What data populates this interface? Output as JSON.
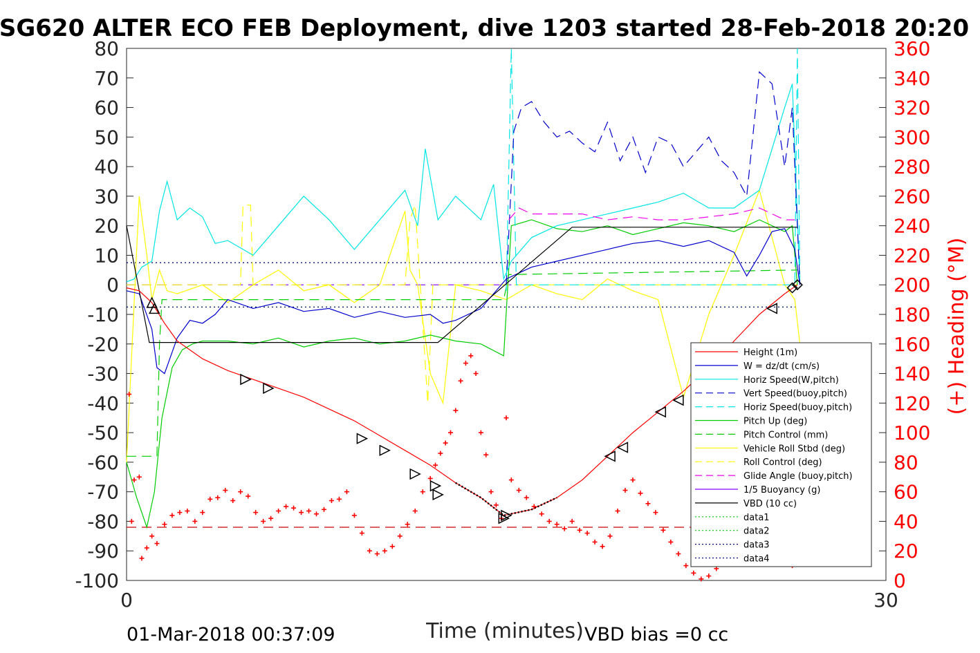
{
  "chart_data": {
    "type": "line",
    "title": "SG620 ALTER ECO FEB Deployment, dive 1203 started 28-Feb-2018 20:20",
    "xlabel": "Time (minutes)",
    "ylabel_right": "(+) Heading (°M)",
    "xlim": [
      0,
      30
    ],
    "ylim": [
      -100,
      80
    ],
    "ylim_right": [
      0,
      360
    ],
    "x_ticks": [
      "0",
      "30"
    ],
    "y_ticks": [
      "80",
      "70",
      "60",
      "50",
      "40",
      "30",
      "20",
      "10",
      "0",
      "-10",
      "-20",
      "-30",
      "-40",
      "-50",
      "-60",
      "-70",
      "-80",
      "-90",
      "-100"
    ],
    "y_right_ticks": [
      "360",
      "340",
      "320",
      "300",
      "280",
      "260",
      "240",
      "220",
      "200",
      "180",
      "160",
      "140",
      "120",
      "100",
      "80",
      "60",
      "40",
      "20",
      "0"
    ],
    "footer_left": "01-Mar-2018 00:37:09",
    "footer_right": "VBD bias =0 cc",
    "legend_position": "bottom-right",
    "colors": {
      "height": "#ff0000",
      "w": "#0000cc",
      "horiz_speed": "#00e5e5",
      "pitch": "#00cc00",
      "roll": "#ffff00",
      "glide": "#ee00ee",
      "buoyancy": "#8000ff",
      "vbd": "#000000",
      "heading": "#ff0000"
    },
    "legend": [
      {
        "label": "Height (1m)",
        "color": "#ff0000",
        "dash": "solid"
      },
      {
        "label": "W = dz/dt (cm/s)",
        "color": "#0000cc",
        "dash": "solid"
      },
      {
        "label": "Horiz Speed(W,pitch)",
        "color": "#00e5e5",
        "dash": "solid"
      },
      {
        "label": "Vert Speed(buoy,pitch)",
        "color": "#0000cc",
        "dash": "dashed"
      },
      {
        "label": "Horiz Speed(buoy,pitch)",
        "color": "#00e5e5",
        "dash": "dashed"
      },
      {
        "label": "Pitch Up (deg)",
        "color": "#00cc00",
        "dash": "solid"
      },
      {
        "label": "Pitch Control (mm)",
        "color": "#00cc00",
        "dash": "dashed"
      },
      {
        "label": "Vehicle Roll Stbd (deg)",
        "color": "#ffff00",
        "dash": "solid"
      },
      {
        "label": "Roll Control (deg)",
        "color": "#ffff00",
        "dash": "dashed"
      },
      {
        "label": "Glide Angle (buoy,pitch)",
        "color": "#ee00ee",
        "dash": "dashed"
      },
      {
        "label": "1/5 Buoyancy (g)",
        "color": "#8000ff",
        "dash": "solid"
      },
      {
        "label": "VBD (10 cc)",
        "color": "#000000",
        "dash": "solid"
      },
      {
        "label": "data1",
        "color": "#00cc00",
        "dash": "dotted"
      },
      {
        "label": "data2",
        "color": "#00cc00",
        "dash": "dotted"
      },
      {
        "label": "data3",
        "color": "#000080",
        "dash": "dotted"
      },
      {
        "label": "data4",
        "color": "#000080",
        "dash": "dotted"
      }
    ],
    "series": [
      {
        "key": "height",
        "x": [
          0,
          0.5,
          1,
          1.5,
          2,
          3,
          4,
          5,
          6,
          7,
          8,
          9,
          10,
          11,
          12,
          13,
          14,
          14.9,
          16,
          17,
          18,
          19,
          20,
          21,
          22,
          23,
          24,
          25,
          26,
          26.5
        ],
        "y": [
          -1,
          -2,
          -6,
          -13,
          -19,
          -25,
          -29,
          -32,
          -35,
          -38,
          -42,
          -46,
          -51,
          -56,
          -61,
          -67,
          -72,
          -78,
          -76,
          -72,
          -66,
          -58,
          -50,
          -43,
          -36,
          -28,
          -19,
          -10,
          -3,
          0
        ]
      },
      {
        "key": "w",
        "x": [
          0,
          0.5,
          1,
          1.2,
          1.5,
          2,
          2.5,
          3,
          3.5,
          4,
          5,
          6,
          7,
          8,
          9,
          10,
          11,
          12,
          12.5,
          13,
          14,
          15,
          16,
          17,
          18,
          19,
          20,
          21,
          22,
          23,
          24,
          24.5,
          25,
          25.5,
          26,
          26.4,
          26.6
        ],
        "y": [
          -2,
          -3,
          -15,
          -28,
          -30,
          -18,
          -12,
          -13,
          -10,
          -5,
          -8,
          -6,
          -9,
          -8,
          -11,
          -9,
          -11,
          -10,
          -13,
          -12,
          -8,
          2,
          6,
          8,
          10,
          12,
          14,
          15,
          13,
          15,
          11,
          3,
          10,
          18,
          19,
          12,
          0
        ]
      },
      {
        "key": "horiz_speed",
        "x": [
          0,
          0.3,
          0.6,
          1,
          1.3,
          1.6,
          2,
          2.5,
          3,
          3.5,
          4,
          5,
          6,
          7,
          8,
          9,
          10,
          11,
          11.5,
          11.8,
          12.3,
          13,
          14,
          14.5,
          14.9,
          15.2,
          16,
          17,
          18,
          19,
          20,
          21,
          22,
          23,
          24,
          25,
          26,
          26.3,
          26.6
        ],
        "y": [
          1,
          2,
          6,
          8,
          25,
          35,
          22,
          26,
          23,
          14,
          15,
          10,
          20,
          30,
          22,
          12,
          22,
          32,
          20,
          46,
          22,
          30,
          22,
          34,
          2,
          8,
          16,
          20,
          22,
          24,
          26,
          28,
          31,
          26,
          26,
          32,
          60,
          68,
          0
        ]
      },
      {
        "key": "vert_speed_buoy",
        "x": [
          15.0,
          15.3,
          15.6,
          16,
          16.5,
          17,
          17.5,
          18,
          18.5,
          19,
          19.5,
          20,
          20.5,
          21,
          21.5,
          22,
          22.5,
          23,
          23.5,
          24,
          24.5,
          25,
          25.5,
          26,
          26.3,
          26.6
        ],
        "y": [
          0,
          52,
          60,
          62,
          55,
          50,
          52,
          48,
          45,
          55,
          42,
          50,
          38,
          50,
          48,
          40,
          45,
          50,
          42,
          38,
          30,
          72,
          68,
          40,
          60,
          0
        ]
      },
      {
        "key": "horiz_speed_buoy",
        "x": [
          15.0,
          15.2,
          15.4,
          26.4,
          26.5,
          26.6
        ],
        "y": [
          -2,
          80,
          0,
          0,
          80,
          0
        ]
      },
      {
        "key": "pitch",
        "x": [
          0,
          0.4,
          0.8,
          1.1,
          1.4,
          1.8,
          2.2,
          2.6,
          3,
          4,
          5,
          6,
          7,
          8,
          9,
          10,
          11,
          12,
          13,
          14,
          14.9,
          15.2,
          16,
          17,
          18,
          19,
          20,
          21,
          22,
          23,
          24,
          25,
          26,
          26.3,
          26.5
        ],
        "y": [
          -60,
          -72,
          -82,
          -70,
          -45,
          -28,
          -22,
          -20,
          -19,
          -19,
          -20,
          -18,
          -21,
          -19,
          -18,
          -20,
          -19,
          -17,
          -19,
          -20,
          -24,
          20,
          22,
          19,
          18,
          20,
          17,
          19,
          21,
          20,
          18,
          22,
          18,
          20,
          0
        ]
      },
      {
        "key": "pitch_control",
        "x": [
          0,
          1.2,
          1.3,
          1.4,
          14.9,
          15.1,
          26.5
        ],
        "y": [
          -58,
          -58,
          -20,
          -5,
          -5,
          3.5,
          5
        ]
      },
      {
        "key": "roll",
        "x": [
          0,
          0.5,
          0.8,
          1,
          1.3,
          1.6,
          2,
          3,
          4,
          5,
          6,
          7,
          8,
          9,
          10,
          11,
          11.2,
          11.5,
          12,
          12.5,
          13,
          14,
          15,
          16,
          17,
          18,
          19,
          20,
          21,
          22,
          23,
          24,
          25,
          26,
          26.4,
          26.6
        ],
        "y": [
          -60,
          30,
          10,
          -5,
          5,
          -2,
          -3,
          0,
          -6,
          0,
          5,
          -2,
          0,
          -6,
          0,
          25,
          5,
          0,
          -30,
          -40,
          0,
          -2,
          -5,
          0,
          -3,
          -5,
          2,
          -2,
          -5,
          -38,
          -10,
          10,
          32,
          0,
          -5,
          -20
        ]
      },
      {
        "key": "roll_control",
        "x": [
          0,
          4.5,
          4.6,
          4.9,
          5.0,
          11,
          11.2,
          11.4,
          11.6,
          11.9,
          12.1,
          26.5
        ],
        "y": [
          0,
          0,
          27,
          27,
          0,
          0,
          22,
          27,
          0,
          -40,
          0,
          0
        ]
      },
      {
        "key": "glide",
        "x": [
          15.1,
          15.5,
          16,
          17,
          18,
          19,
          20,
          21,
          22,
          23,
          24,
          25,
          26,
          26.4
        ],
        "y": [
          22,
          26,
          24,
          24,
          24,
          22,
          23,
          22,
          22,
          23,
          24,
          26,
          22,
          22
        ]
      },
      {
        "key": "buoyancy",
        "x": [
          0,
          15.0,
          15.2
        ],
        "y": [
          0,
          0,
          0
        ]
      },
      {
        "key": "vbd",
        "x": [
          0,
          0.9,
          12.3,
          17.6,
          26.5
        ],
        "y": [
          20,
          -19.5,
          -19.5,
          19.5,
          19.5
        ]
      },
      {
        "key": "data1",
        "x": [
          0,
          26.5
        ],
        "y": [
          7.5,
          7.5
        ]
      },
      {
        "key": "data2",
        "x": [
          0,
          26.5
        ],
        "y": [
          -7.5,
          -7.5
        ]
      },
      {
        "key": "data3",
        "x": [
          0,
          26.5
        ],
        "y": [
          7.5,
          7.5
        ]
      },
      {
        "key": "data4",
        "x": [
          0,
          26.5
        ],
        "y": [
          -7.5,
          -7.5
        ]
      },
      {
        "key": "reference_line",
        "x": [
          0,
          26.5
        ],
        "y": [
          -82,
          -82
        ]
      }
    ],
    "heading": {
      "axis": "right",
      "x": [
        0.1,
        0.2,
        0.3,
        0.5,
        0.6,
        0.8,
        1.0,
        1.2,
        1.5,
        1.8,
        2.1,
        2.4,
        2.7,
        3.0,
        3.3,
        3.6,
        3.9,
        4.2,
        4.5,
        4.8,
        5.1,
        5.4,
        5.7,
        6.0,
        6.3,
        6.6,
        6.9,
        7.2,
        7.5,
        7.8,
        8.1,
        8.4,
        8.7,
        9.0,
        9.3,
        9.6,
        9.9,
        10.2,
        10.5,
        10.8,
        11.1,
        11.4,
        11.7,
        12.0,
        12.2,
        12.4,
        12.6,
        12.8,
        13.0,
        13.2,
        13.4,
        13.6,
        13.8,
        14.0,
        14.2,
        14.4,
        14.6,
        14.8,
        15.0,
        15.2,
        15.5,
        15.8,
        16.1,
        16.4,
        16.7,
        17.0,
        17.3,
        17.6,
        17.9,
        18.2,
        18.5,
        18.8,
        19.1,
        19.4,
        19.7,
        20.0,
        20.3,
        20.6,
        20.9,
        21.2,
        21.5,
        21.8,
        22.1,
        22.4,
        22.7,
        23.0,
        23.3,
        23.6,
        23.9,
        24.2,
        24.5,
        24.8,
        25.1,
        25.4,
        25.7,
        26.0,
        26.3
      ],
      "y": [
        126,
        40,
        68,
        70,
        15,
        22,
        30,
        25,
        38,
        44,
        46,
        47,
        40,
        46,
        55,
        56,
        61,
        54,
        60,
        57,
        46,
        40,
        42,
        47,
        50,
        49,
        46,
        47,
        45,
        48,
        54,
        55,
        60,
        44,
        32,
        20,
        18,
        20,
        23,
        30,
        38,
        47,
        60,
        69,
        78,
        86,
        93,
        100,
        115,
        135,
        147,
        152,
        140,
        100,
        85,
        60,
        51,
        42,
        110,
        68,
        61,
        56,
        50,
        45,
        40,
        38,
        35,
        40,
        34,
        32,
        26,
        23,
        30,
        47,
        61,
        68,
        59,
        52,
        46,
        34,
        26,
        18,
        10,
        5,
        1,
        3,
        8,
        12,
        20,
        25,
        30,
        35,
        40,
        45,
        20,
        12,
        10
      ]
    },
    "height_markers": {
      "x": [
        1.0,
        1.1,
        4.7,
        5.6,
        9.3,
        10.2,
        11.4,
        12.2,
        12.3,
        14.9,
        15.0,
        19.1,
        19.6,
        21.1,
        21.8,
        25.5,
        26.3,
        26.5
      ],
      "y": [
        -6,
        -8,
        -32,
        -35,
        -52,
        -56,
        -64,
        -68,
        -71,
        -79,
        -78,
        -58,
        -55,
        -43,
        -39,
        -8,
        -1,
        0
      ]
    }
  }
}
